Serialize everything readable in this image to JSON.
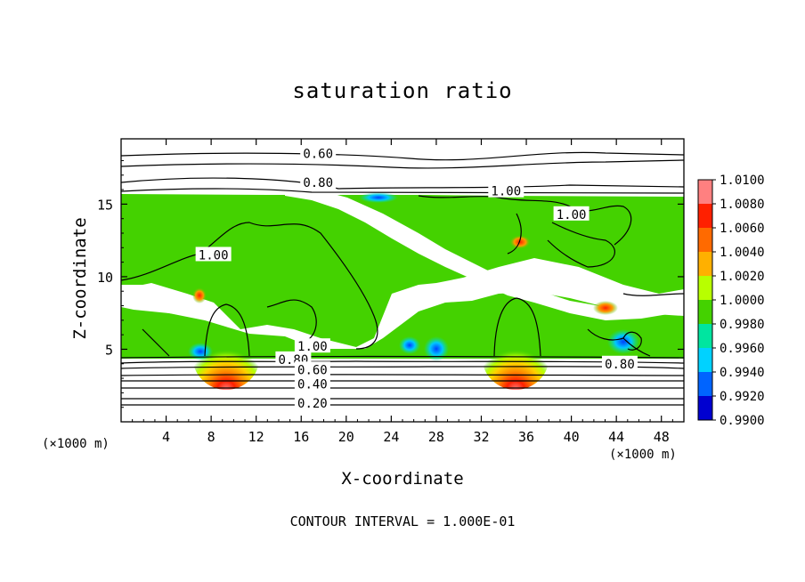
{
  "title": "saturation ratio",
  "note": "CONTOUR INTERVAL = 1.000E-01",
  "x_unit_left": "(×1000 m)",
  "x_unit_right": "(×1000 m)",
  "chart_data": {
    "type": "heatmap",
    "title": "saturation ratio",
    "xlabel": "X-coordinate",
    "ylabel": "Z-coordinate",
    "x_unit": "(×1000 m)",
    "xlim": [
      0,
      50
    ],
    "ylim": [
      0,
      19.5
    ],
    "x_ticks": [
      4,
      8,
      12,
      16,
      20,
      24,
      28,
      32,
      36,
      40,
      44,
      48
    ],
    "y_ticks": [
      5,
      10,
      15
    ],
    "contour_interval": "1.000E-01",
    "contour_labels": [
      {
        "text": "0.60",
        "x": 17.5,
        "y": 18.5
      },
      {
        "text": "0.80",
        "x": 17.5,
        "y": 16.5
      },
      {
        "text": "1.00",
        "x": 34.2,
        "y": 15.9
      },
      {
        "text": "1.00",
        "x": 40.0,
        "y": 14.3
      },
      {
        "text": "1.00",
        "x": 8.2,
        "y": 11.5
      },
      {
        "text": "1.00",
        "x": 17.0,
        "y": 5.2
      },
      {
        "text": "0.80",
        "x": 15.3,
        "y": 4.3
      },
      {
        "text": "0.60",
        "x": 17.0,
        "y": 3.6
      },
      {
        "text": "0.40",
        "x": 17.0,
        "y": 2.6
      },
      {
        "text": "0.20",
        "x": 17.0,
        "y": 1.3
      },
      {
        "text": "0.80",
        "x": 44.3,
        "y": 4.0
      }
    ],
    "colorbar": {
      "labels": [
        "1.0100",
        "1.0080",
        "1.0060",
        "1.0040",
        "1.0020",
        "1.0000",
        "0.9980",
        "0.9960",
        "0.9940",
        "0.9920",
        "0.9900"
      ],
      "colors": [
        "#ff8080",
        "#ff2000",
        "#ff6a00",
        "#ffb000",
        "#b8ff00",
        "#44d200",
        "#00e5a0",
        "#00d2ff",
        "#0064ff",
        "#0000d0",
        "#5a00a0"
      ]
    },
    "hotspots": [
      {
        "x": 10,
        "y": 4.9,
        "peak": 1.01
      },
      {
        "x": 35,
        "y": 4.9,
        "peak": 1.01
      },
      {
        "x": 6.8,
        "y": 9.0,
        "peak": 1.008
      },
      {
        "x": 41.8,
        "y": 8.3,
        "peak": 1.008
      },
      {
        "x": 36.5,
        "y": 12.5,
        "peak": 1.004
      }
    ],
    "coldspots": [
      {
        "x": 6.5,
        "y": 4.8,
        "low": 0.994
      },
      {
        "x": 27.5,
        "y": 5.2,
        "low": 0.994
      },
      {
        "x": 22.5,
        "y": 16.0,
        "low": 0.994
      },
      {
        "x": 43.5,
        "y": 5.6,
        "low": 0.996
      }
    ]
  }
}
